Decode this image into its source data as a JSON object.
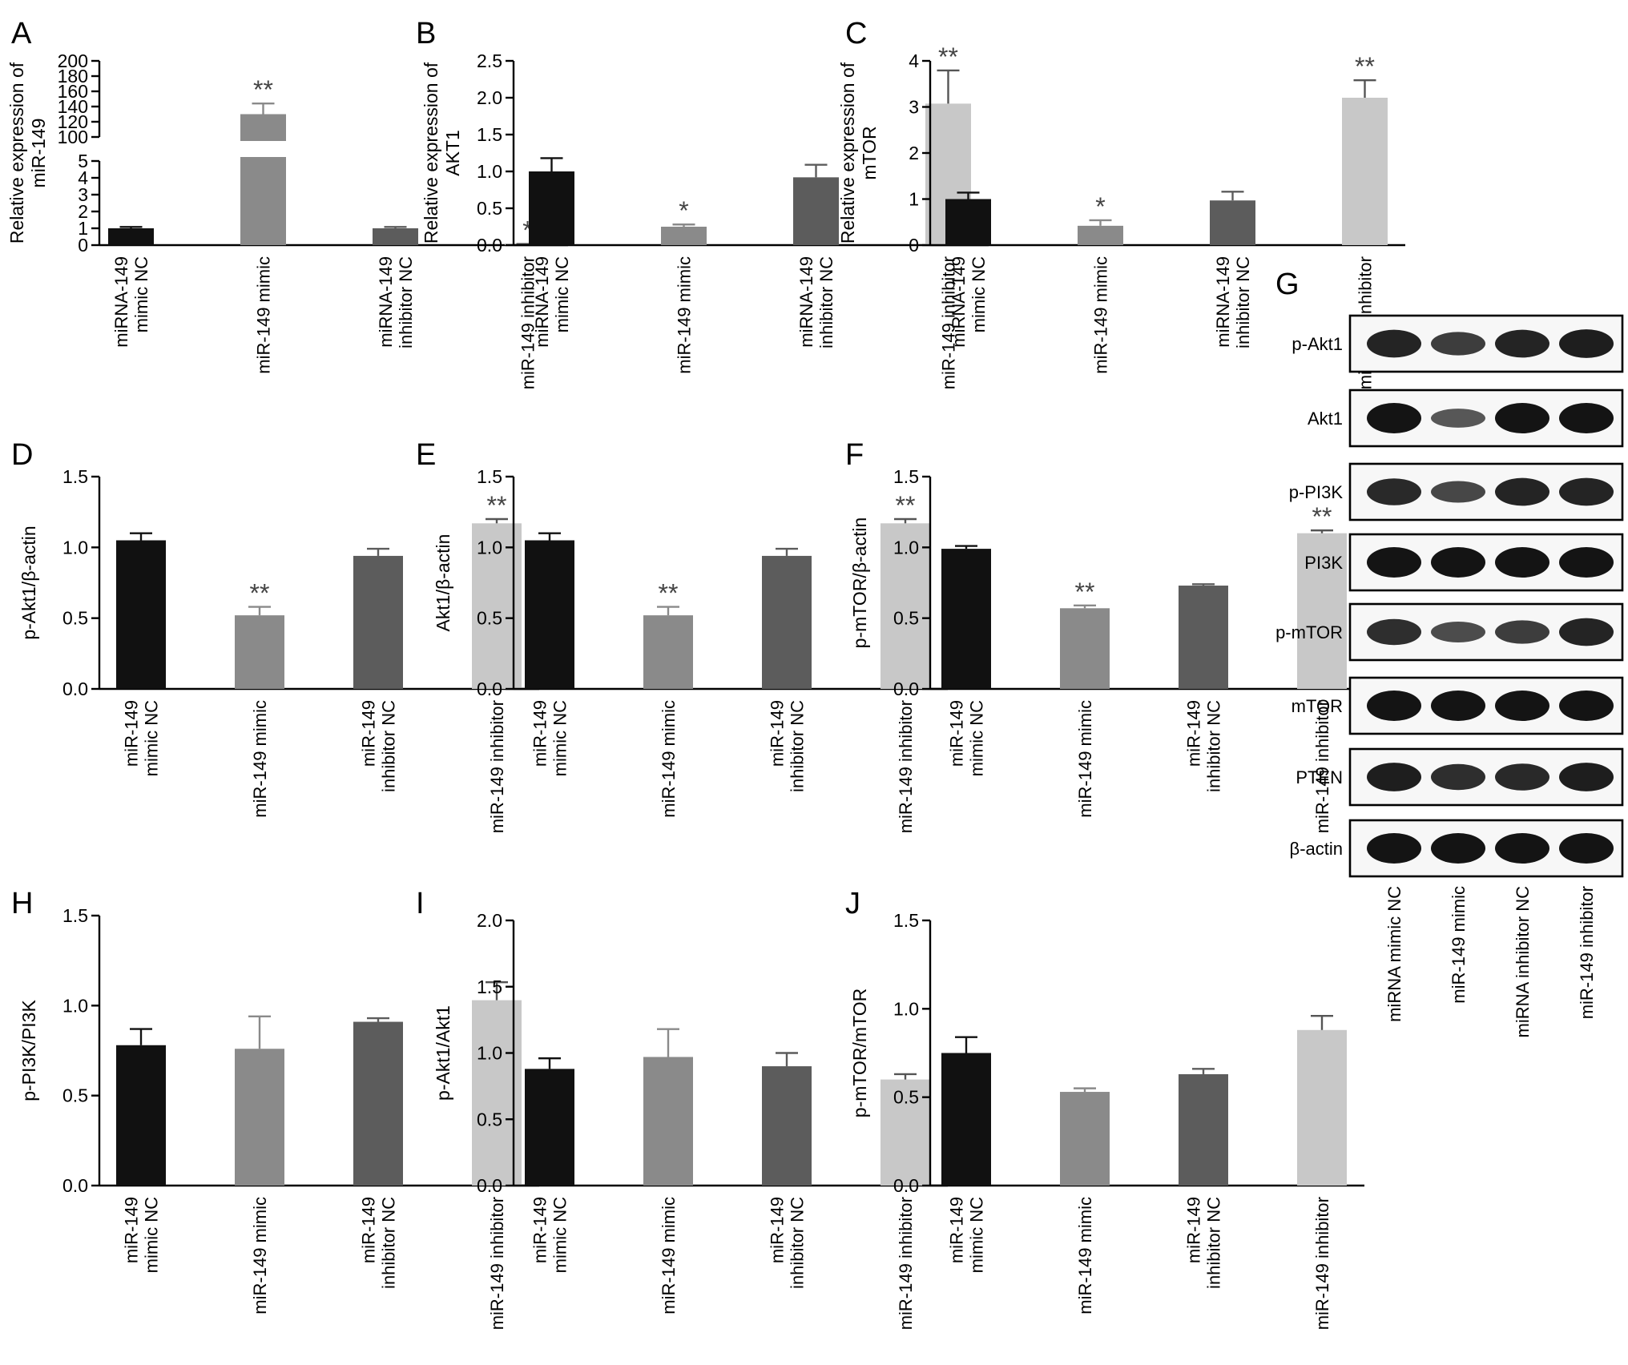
{
  "colors": {
    "c1": "#111111",
    "c2": "#8a8a8a",
    "c3": "#5c5c5c",
    "c4": "#c8c8c8",
    "blot_band": "#141414",
    "blot_bg": "#f7f7f7"
  },
  "chart_data": [
    {
      "panel": "A",
      "type": "bar",
      "ylabel": "Relative expression of miR-149",
      "broken_axis": true,
      "categories": [
        "miRNA-149 mimic NC",
        "miR-149 mimic",
        "miRNA-149 inhibitor NC",
        "miR-149 inhibitor"
      ],
      "values": [
        1.0,
        130,
        1.0,
        0.05
      ],
      "errors": [
        0.08,
        14,
        0.08,
        0.02
      ],
      "significance": [
        "",
        "**",
        "",
        "*"
      ],
      "lower_ylim": [
        0,
        5
      ],
      "lower_ticks": [
        "0",
        "1",
        "2",
        "3",
        "4",
        "5"
      ],
      "upper_ylim": [
        100,
        200
      ],
      "upper_ticks": [
        "100",
        "120",
        "140",
        "160",
        "180",
        "200"
      ]
    },
    {
      "panel": "B",
      "type": "bar",
      "ylabel": "Relative expression of AKT1",
      "categories": [
        "miRNA-149 mimic NC",
        "miR-149 mimic",
        "miRNA-149 inhibitor NC",
        "miR-149 inhibitor"
      ],
      "values": [
        1.0,
        0.25,
        0.92,
        1.92
      ],
      "errors": [
        0.18,
        0.03,
        0.17,
        0.45
      ],
      "significance": [
        "",
        "*",
        "",
        "**"
      ],
      "ylim": [
        0,
        2.5
      ],
      "ticks": [
        "0.0",
        "0.5",
        "1.0",
        "1.5",
        "2.0",
        "2.5"
      ]
    },
    {
      "panel": "C",
      "type": "bar",
      "ylabel": "Relative expression of mTOR",
      "categories": [
        "miRNA-149 mimic NC",
        "miR-149 mimic",
        "miRNA-149 inhibitor NC",
        "miR-149 inhibitor"
      ],
      "values": [
        1.0,
        0.42,
        0.97,
        3.2
      ],
      "errors": [
        0.14,
        0.12,
        0.19,
        0.38
      ],
      "significance": [
        "",
        "*",
        "",
        "**"
      ],
      "ylim": [
        0,
        4
      ],
      "ticks": [
        "0",
        "1",
        "2",
        "3",
        "4"
      ]
    },
    {
      "panel": "D",
      "type": "bar",
      "ylabel": "p-Akt1/β-actin",
      "categories": [
        "miR-149 mimic NC",
        "miR-149 mimic",
        "miR-149 inhibitor NC",
        "miR-149 inhibitor"
      ],
      "values": [
        1.05,
        0.52,
        0.94,
        1.17
      ],
      "errors": [
        0.05,
        0.06,
        0.05,
        0.03
      ],
      "significance": [
        "",
        "**",
        "",
        "**"
      ],
      "ylim": [
        0,
        1.5
      ],
      "ticks": [
        "0.0",
        "0.5",
        "1.0",
        "1.5"
      ]
    },
    {
      "panel": "E",
      "type": "bar",
      "ylabel": "Akt1/β-actin",
      "categories": [
        "miR-149 mimic NC",
        "miR-149 mimic",
        "miR-149 inhibitor NC",
        "miR-149 inhibitor"
      ],
      "values": [
        1.05,
        0.52,
        0.94,
        1.17
      ],
      "errors": [
        0.05,
        0.06,
        0.05,
        0.03
      ],
      "significance": [
        "",
        "**",
        "",
        "**"
      ],
      "ylim": [
        0,
        1.5
      ],
      "ticks": [
        "0.0",
        "0.5",
        "1.0",
        "1.5"
      ]
    },
    {
      "panel": "F",
      "type": "bar",
      "ylabel": "p-mTOR/β-actin",
      "categories": [
        "miR-149 mimic NC",
        "miR-149 mimic",
        "miR-149 inhibitor NC",
        "miR-149 inhibitor"
      ],
      "values": [
        0.99,
        0.57,
        0.73,
        1.1
      ],
      "errors": [
        0.02,
        0.02,
        0.01,
        0.02
      ],
      "significance": [
        "",
        "**",
        "",
        "**"
      ],
      "ylim": [
        0,
        1.5
      ],
      "ticks": [
        "0.0",
        "0.5",
        "1.0",
        "1.5"
      ]
    },
    {
      "panel": "H",
      "type": "bar",
      "ylabel": "p-PI3K/PI3K",
      "categories": [
        "miR-149 mimic NC",
        "miR-149 mimic",
        "miR-149 inhibitor NC",
        "miR-149 inhibitor"
      ],
      "values": [
        0.78,
        0.76,
        0.91,
        1.03
      ],
      "errors": [
        0.09,
        0.18,
        0.02,
        0.1
      ],
      "significance": [
        "",
        "",
        "",
        ""
      ],
      "ylim": [
        0,
        1.5
      ],
      "ticks": [
        "0.0",
        "0.5",
        "1.0",
        "1.5"
      ]
    },
    {
      "panel": "I",
      "type": "bar",
      "ylabel": "p-Akt1/Akt1",
      "categories": [
        "miR-149 mimic NC",
        "miR-149 mimic",
        "miR-149 inhibitor NC",
        "miR-149 inhibitor"
      ],
      "values": [
        0.88,
        0.97,
        0.9,
        0.8
      ],
      "errors": [
        0.08,
        0.21,
        0.1,
        0.04
      ],
      "significance": [
        "",
        "",
        "",
        ""
      ],
      "ylim": [
        0,
        2.0
      ],
      "ticks": [
        "0.0",
        "0.5",
        "1.0",
        "1.5",
        "2.0"
      ]
    },
    {
      "panel": "J",
      "type": "bar",
      "ylabel": "p-mTOR/mTOR",
      "categories": [
        "miR-149 mimic NC",
        "miR-149 mimic",
        "miR-149 inhibitor NC",
        "miR-149 inhibitor"
      ],
      "values": [
        0.75,
        0.53,
        0.63,
        0.88
      ],
      "errors": [
        0.09,
        0.02,
        0.03,
        0.08
      ],
      "significance": [
        "",
        "",
        "",
        ""
      ],
      "ylim": [
        0,
        1.5
      ],
      "ticks": [
        "0.0",
        "0.5",
        "1.0",
        "1.5"
      ]
    }
  ],
  "western_blot": {
    "panel": "G",
    "rows": [
      "p-Akt1",
      "Akt1",
      "p-PI3K",
      "PI3K",
      "p-mTOR",
      "mTOR",
      "PTEN",
      "β-actin"
    ],
    "lanes": [
      "miRNA mimic NC",
      "miR-149 mimic",
      "miRNA inhibitor NC",
      "miR-149 inhibitor"
    ],
    "band_intensity": [
      [
        0.85,
        0.6,
        0.85,
        0.9
      ],
      [
        1.0,
        0.35,
        1.0,
        1.0
      ],
      [
        0.8,
        0.5,
        0.85,
        0.85
      ],
      [
        1.0,
        1.0,
        1.0,
        1.0
      ],
      [
        0.75,
        0.45,
        0.6,
        0.85
      ],
      [
        1.0,
        1.0,
        1.0,
        1.0
      ],
      [
        0.9,
        0.75,
        0.8,
        0.9
      ],
      [
        1.0,
        1.0,
        1.0,
        1.0
      ]
    ]
  }
}
